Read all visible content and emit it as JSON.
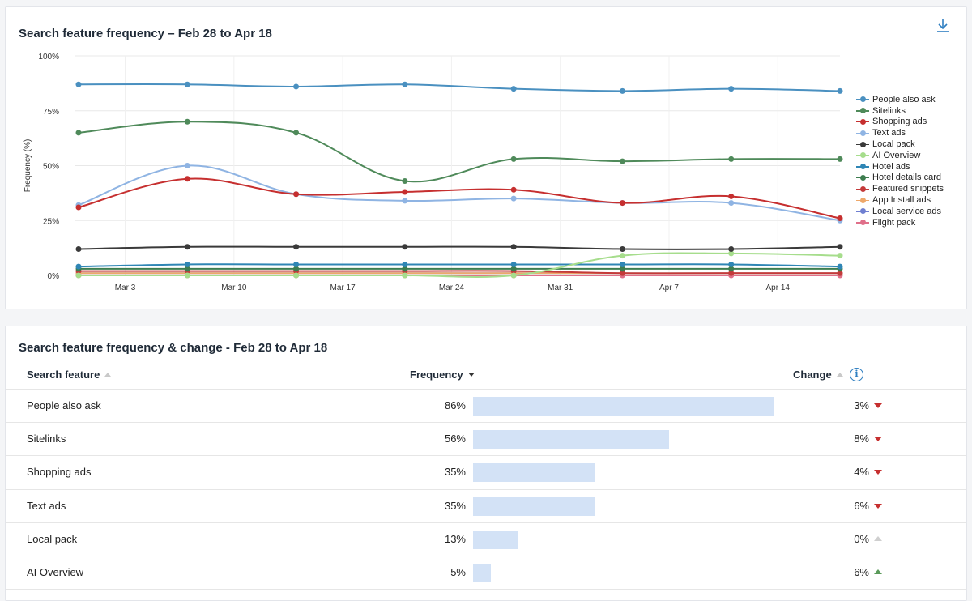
{
  "chart_card": {
    "title": "Search feature frequency – Feb 28 to Apr 18",
    "download_icon": "download-icon"
  },
  "chart_data": {
    "type": "line",
    "ylabel": "Frequency (%)",
    "xlabel": "",
    "ylim": [
      0,
      100
    ],
    "y_ticks": [
      "0%",
      "25%",
      "50%",
      "75%",
      "100%"
    ],
    "x_tick_labels": [
      "Mar 3",
      "Mar 10",
      "Mar 17",
      "Mar 24",
      "Mar 31",
      "Apr 7",
      "Apr 14"
    ],
    "x": [
      "Feb 28",
      "Mar 7",
      "Mar 14",
      "Mar 21",
      "Mar 28",
      "Apr 4",
      "Apr 11",
      "Apr 18"
    ],
    "grid": true,
    "legend_position": "right",
    "series": [
      {
        "name": "People also ask",
        "color": "#4a90c0",
        "values": [
          87,
          87,
          86,
          87,
          85,
          84,
          85,
          84
        ]
      },
      {
        "name": "Sitelinks",
        "color": "#4f8a5a",
        "values": [
          65,
          70,
          65,
          43,
          53,
          52,
          53,
          53
        ]
      },
      {
        "name": "Shopping ads",
        "color": "#c62f2f",
        "values": [
          31,
          44,
          37,
          38,
          39,
          33,
          36,
          26
        ]
      },
      {
        "name": "Text ads",
        "color": "#8fb4e3",
        "values": [
          32,
          50,
          37,
          34,
          35,
          33,
          33,
          25
        ]
      },
      {
        "name": "Local pack",
        "color": "#3a3a3a",
        "values": [
          12,
          13,
          13,
          13,
          13,
          12,
          12,
          13
        ]
      },
      {
        "name": "AI Overview",
        "color": "#a6dd8c",
        "values": [
          0,
          0,
          0,
          0,
          0,
          9,
          10,
          9
        ]
      },
      {
        "name": "Hotel ads",
        "color": "#2f86b5",
        "values": [
          4,
          5,
          5,
          5,
          5,
          5,
          5,
          4
        ]
      },
      {
        "name": "Hotel details card",
        "color": "#3d7d4f",
        "values": [
          3,
          3,
          3,
          3,
          3,
          3,
          3,
          3
        ]
      },
      {
        "name": "Featured snippets",
        "color": "#c43a3a",
        "values": [
          2,
          2,
          2,
          2,
          2,
          1,
          1,
          1
        ]
      },
      {
        "name": "App Install ads",
        "color": "#eea86a",
        "values": [
          1,
          1,
          1,
          1,
          1,
          1,
          1,
          1
        ]
      },
      {
        "name": "Local service ads",
        "color": "#6f7fd1",
        "values": [
          1,
          1,
          1,
          1,
          1,
          1,
          1,
          1
        ]
      },
      {
        "name": "Flight pack",
        "color": "#e0708a",
        "values": [
          0,
          0,
          0,
          0,
          0,
          0,
          0,
          0
        ]
      }
    ]
  },
  "table_card": {
    "title": "Search feature frequency & change - Feb 28 to Apr 18",
    "headers": {
      "feature": "Search feature",
      "frequency": "Frequency",
      "change": "Change"
    },
    "info_icon": "i",
    "rows": [
      {
        "feature": "People also ask",
        "frequency": "86%",
        "frequency_value": 86,
        "change": "3%",
        "direction": "down"
      },
      {
        "feature": "Sitelinks",
        "frequency": "56%",
        "frequency_value": 56,
        "change": "8%",
        "direction": "down"
      },
      {
        "feature": "Shopping ads",
        "frequency": "35%",
        "frequency_value": 35,
        "change": "4%",
        "direction": "down"
      },
      {
        "feature": "Text ads",
        "frequency": "35%",
        "frequency_value": 35,
        "change": "6%",
        "direction": "down"
      },
      {
        "feature": "Local pack",
        "frequency": "13%",
        "frequency_value": 13,
        "change": "0%",
        "direction": "flat"
      },
      {
        "feature": "AI Overview",
        "frequency": "5%",
        "frequency_value": 5,
        "change": "6%",
        "direction": "up"
      }
    ]
  }
}
